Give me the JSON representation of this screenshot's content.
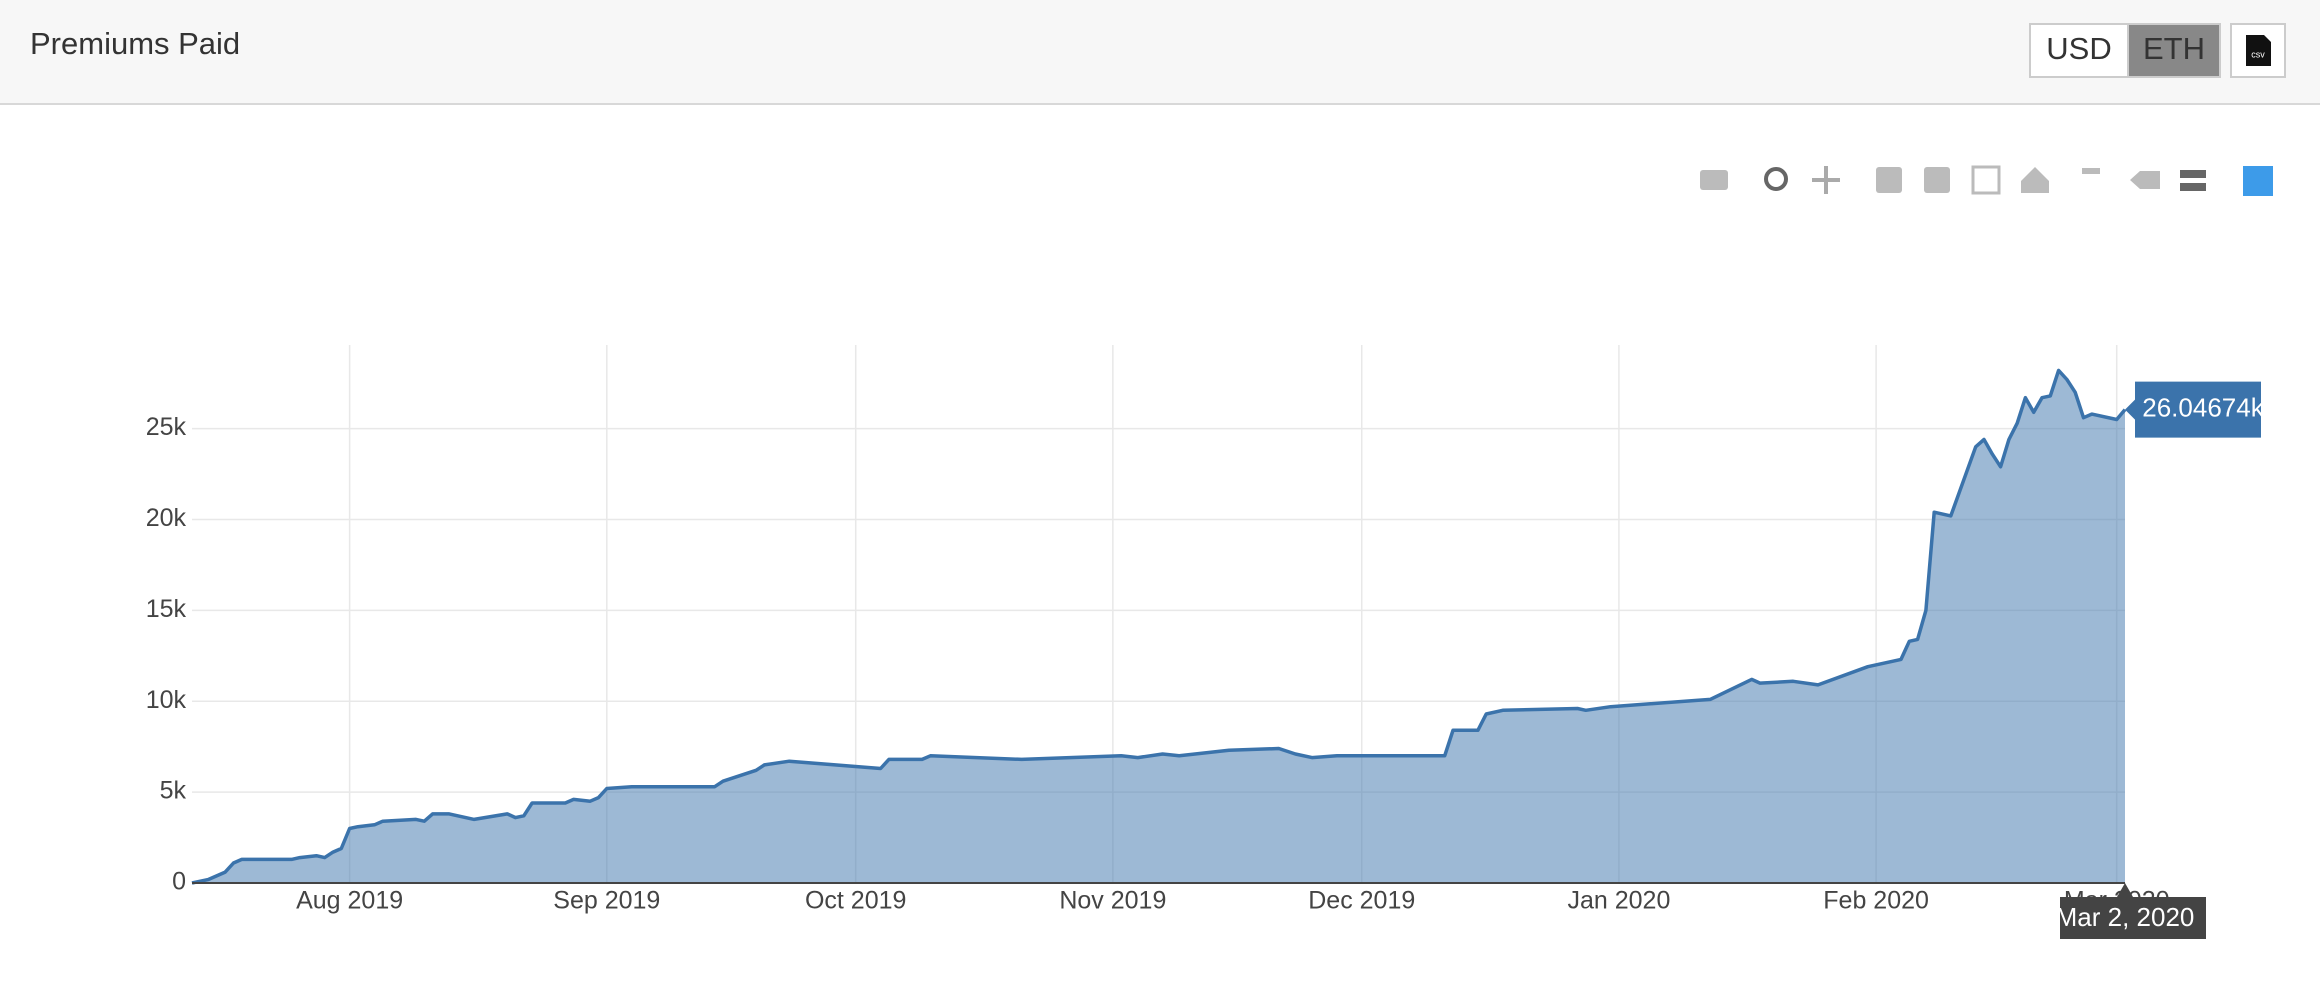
{
  "header": {
    "title": "Premiums Paid",
    "currency_options": [
      "USD",
      "ETH"
    ],
    "active_currency": "ETH",
    "csv_icon": "csv"
  },
  "chart_data": {
    "type": "area",
    "x": [
      "2019-07-13",
      "2019-07-15",
      "2019-07-17",
      "2019-07-18",
      "2019-07-19",
      "2019-07-25",
      "2019-07-26",
      "2019-07-28",
      "2019-07-29",
      "2019-07-30",
      "2019-07-31",
      "2019-08-01",
      "2019-08-02",
      "2019-08-04",
      "2019-08-05",
      "2019-08-09",
      "2019-08-10",
      "2019-08-11",
      "2019-08-13",
      "2019-08-16",
      "2019-08-20",
      "2019-08-21",
      "2019-08-22",
      "2019-08-23",
      "2019-08-27",
      "2019-08-28",
      "2019-08-30",
      "2019-08-31",
      "2019-09-01",
      "2019-09-04",
      "2019-09-14",
      "2019-09-15",
      "2019-09-19",
      "2019-09-20",
      "2019-09-23",
      "2019-10-04",
      "2019-10-05",
      "2019-10-09",
      "2019-10-10",
      "2019-10-21",
      "2019-11-02",
      "2019-11-04",
      "2019-11-07",
      "2019-11-09",
      "2019-11-15",
      "2019-11-21",
      "2019-11-23",
      "2019-11-25",
      "2019-11-28",
      "2019-12-05",
      "2019-12-11",
      "2019-12-12",
      "2019-12-15",
      "2019-12-16",
      "2019-12-18",
      "2019-12-27",
      "2019-12-28",
      "2019-12-31",
      "2020-01-12",
      "2020-01-17",
      "2020-01-18",
      "2020-01-22",
      "2020-01-25",
      "2020-01-31",
      "2020-02-04",
      "2020-02-05",
      "2020-02-06",
      "2020-02-07",
      "2020-02-08",
      "2020-02-10",
      "2020-02-13",
      "2020-02-14",
      "2020-02-15",
      "2020-02-16",
      "2020-02-17",
      "2020-02-18",
      "2020-02-19",
      "2020-02-20",
      "2020-02-21",
      "2020-02-22",
      "2020-02-23",
      "2020-02-24",
      "2020-02-25",
      "2020-02-26",
      "2020-02-27",
      "2020-03-01",
      "2020-03-02"
    ],
    "series": [
      {
        "color": "#3b73ab",
        "values": [
          0,
          200,
          600,
          1100,
          1300,
          1300,
          1400,
          1500,
          1400,
          1700,
          1900,
          3000,
          3100,
          3200,
          3400,
          3500,
          3400,
          3800,
          3800,
          3500,
          3800,
          3600,
          3700,
          4400,
          4400,
          4600,
          4500,
          4700,
          5200,
          5300,
          5300,
          5600,
          6200,
          6500,
          6700,
          6300,
          6800,
          6800,
          7000,
          6800,
          7000,
          6900,
          7100,
          7000,
          7300,
          7400,
          7100,
          6900,
          7000,
          7000,
          7000,
          8400,
          8400,
          9300,
          9500,
          9600,
          9500,
          9700,
          10100,
          11200,
          11000,
          11100,
          10900,
          11900,
          12300,
          13300,
          13400,
          15000,
          20400,
          20200,
          24000,
          24400,
          23600,
          22900,
          24400,
          25300,
          26700,
          25900,
          26700,
          26800,
          28200,
          27700,
          27000,
          25600,
          25800,
          25500,
          26046.74
        ],
        "value_labels": [
          null,
          null,
          null,
          null,
          null,
          null,
          null,
          null,
          null,
          null,
          null,
          null,
          null,
          null,
          null,
          null,
          null,
          null,
          null,
          null,
          null,
          null,
          null,
          null,
          null,
          null,
          null,
          null,
          null,
          null,
          null,
          null,
          null,
          null,
          null,
          null,
          null,
          null,
          null,
          null,
          null,
          null,
          null,
          null,
          null,
          null,
          null,
          null,
          null,
          null,
          null,
          null,
          null,
          null,
          null,
          null,
          null,
          null,
          null,
          null,
          null,
          null,
          null,
          null,
          null,
          null,
          null,
          null,
          null,
          null,
          null,
          null,
          null,
          null,
          null,
          null,
          null,
          null,
          null,
          null,
          null,
          null,
          null,
          null,
          null,
          null,
          "26.04674k"
        ]
      }
    ],
    "hover_x_label": "Mar 2, 2020",
    "xlim": [
      "2019-07-13",
      "2020-03-02"
    ],
    "xticks": [
      {
        "value": "2019-08-01",
        "label": "Aug 2019"
      },
      {
        "value": "2019-09-01",
        "label": "Sep 2019"
      },
      {
        "value": "2019-10-01",
        "label": "Oct 2019"
      },
      {
        "value": "2019-11-01",
        "label": "Nov 2019"
      },
      {
        "value": "2019-12-01",
        "label": "Dec 2019"
      },
      {
        "value": "2020-01-01",
        "label": "Jan 2020"
      },
      {
        "value": "2020-02-01",
        "label": "Feb 2020"
      },
      {
        "value": "2020-03-01",
        "label": "Mar 2020"
      }
    ],
    "ylim": [
      0,
      29600
    ],
    "yticks": [
      0,
      {
        "value": 5000,
        "label": "5k"
      },
      {
        "value": 10000,
        "label": "10k"
      },
      {
        "value": 15000,
        "label": "15k"
      },
      {
        "value": 20000,
        "label": "20k"
      },
      {
        "value": 25000,
        "label": "25k"
      }
    ],
    "grid": true
  }
}
